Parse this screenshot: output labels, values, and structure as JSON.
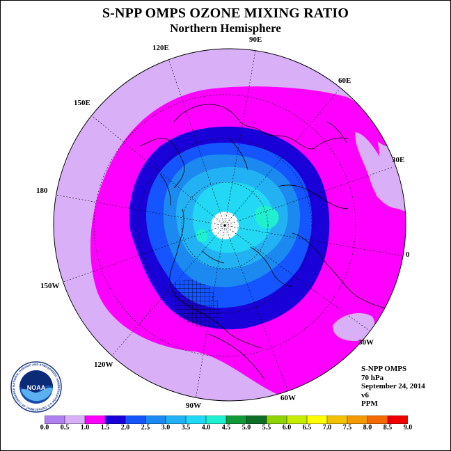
{
  "title": "S-NPP OMPS OZONE MIXING RATIO",
  "subtitle": "Northern Hemisphere",
  "longitude_labels": {
    "e90": "90E",
    "e60": "60E",
    "e30": "30E",
    "z0": "0",
    "w30": "30W",
    "w60": "60W",
    "w90": "90W",
    "w120": "120W",
    "w150": "150W",
    "d180": "180",
    "e150": "150E",
    "e120": "120E"
  },
  "info": {
    "instrument": "S-NPP OMPS",
    "level": "70 hPa",
    "date": "September 24, 2014",
    "version": "v6",
    "units": "PPM"
  },
  "logo": {
    "text": "NOAA",
    "ring_text": "NATIONAL OCEANIC AND ATMOSPHERIC ADMINISTRATION U.S. DEPARTMENT OF COMMERCE"
  },
  "colorbar": {
    "ticks": [
      "0.0",
      "0.5",
      "1.0",
      "1.5",
      "2.0",
      "2.5",
      "3.0",
      "3.5",
      "4.0",
      "4.5",
      "5.0",
      "5.5",
      "6.0",
      "6.5",
      "7.0",
      "7.5",
      "8.0",
      "8.5",
      "9.0"
    ],
    "colors": [
      "#b080f0",
      "#d9b0f8",
      "#ff00ff",
      "#1a00d8",
      "#1455ff",
      "#1b89f0",
      "#22b2f4",
      "#22d8f4",
      "#20f0cf",
      "#129a3a",
      "#0e6e28",
      "#8fd400",
      "#c8ec00",
      "#ffff00",
      "#f2c200",
      "#f29a00",
      "#f26a00",
      "#ee0000",
      "#8a5230"
    ]
  },
  "map": {
    "ozone_levels": [
      {
        "range_ppm": [
          0.5,
          1.0
        ],
        "color": "#d9b0f8"
      },
      {
        "range_ppm": [
          1.0,
          1.5
        ],
        "color": "#ff00ff"
      },
      {
        "range_ppm": [
          1.5,
          2.0
        ],
        "color": "#1a00d8"
      },
      {
        "range_ppm": [
          2.0,
          2.5
        ],
        "color": "#1455ff"
      },
      {
        "range_ppm": [
          2.5,
          3.0
        ],
        "color": "#1b89f0"
      },
      {
        "range_ppm": [
          3.0,
          3.5
        ],
        "color": "#22b2f4"
      },
      {
        "range_ppm": [
          3.5,
          4.0
        ],
        "color": "#22d8f4"
      },
      {
        "range_ppm": [
          4.0,
          4.5
        ],
        "color": "#20f0cf"
      }
    ],
    "missing_data_color": "#ffffff"
  }
}
